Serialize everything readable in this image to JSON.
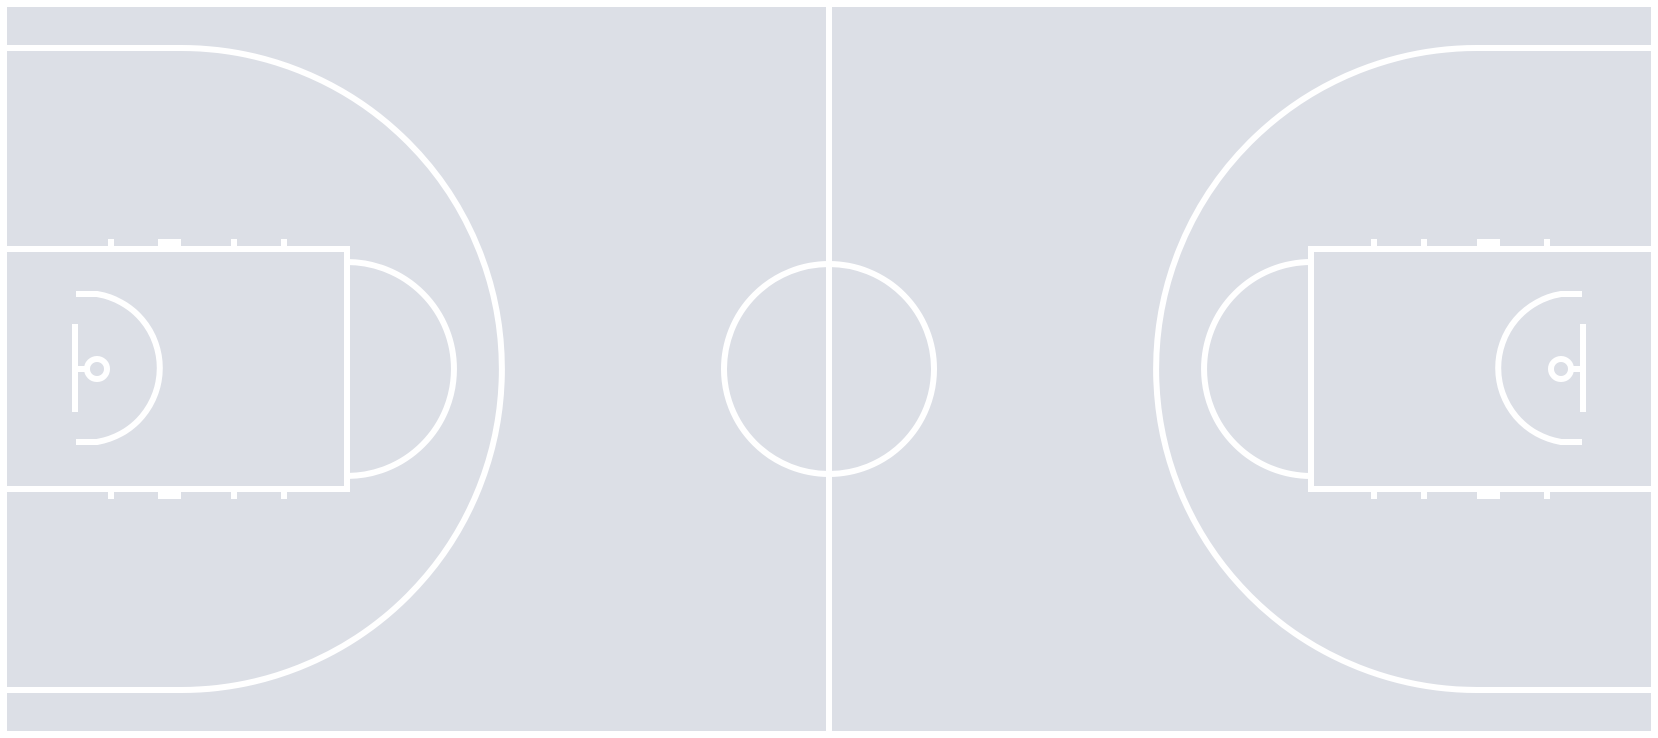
{
  "court": {
    "type": "basketball-half-court-diagram",
    "colors": {
      "floor": "#dcdfe6",
      "lines": "#ffffff"
    },
    "elements": [
      "boundary",
      "center-line",
      "center-circle",
      "left-three-point-arc",
      "left-key",
      "left-free-throw-arc",
      "left-restricted-arc",
      "left-backboard",
      "left-rim",
      "right-three-point-arc",
      "right-key",
      "right-free-throw-arc",
      "right-restricted-arc",
      "right-backboard",
      "right-rim"
    ]
  }
}
